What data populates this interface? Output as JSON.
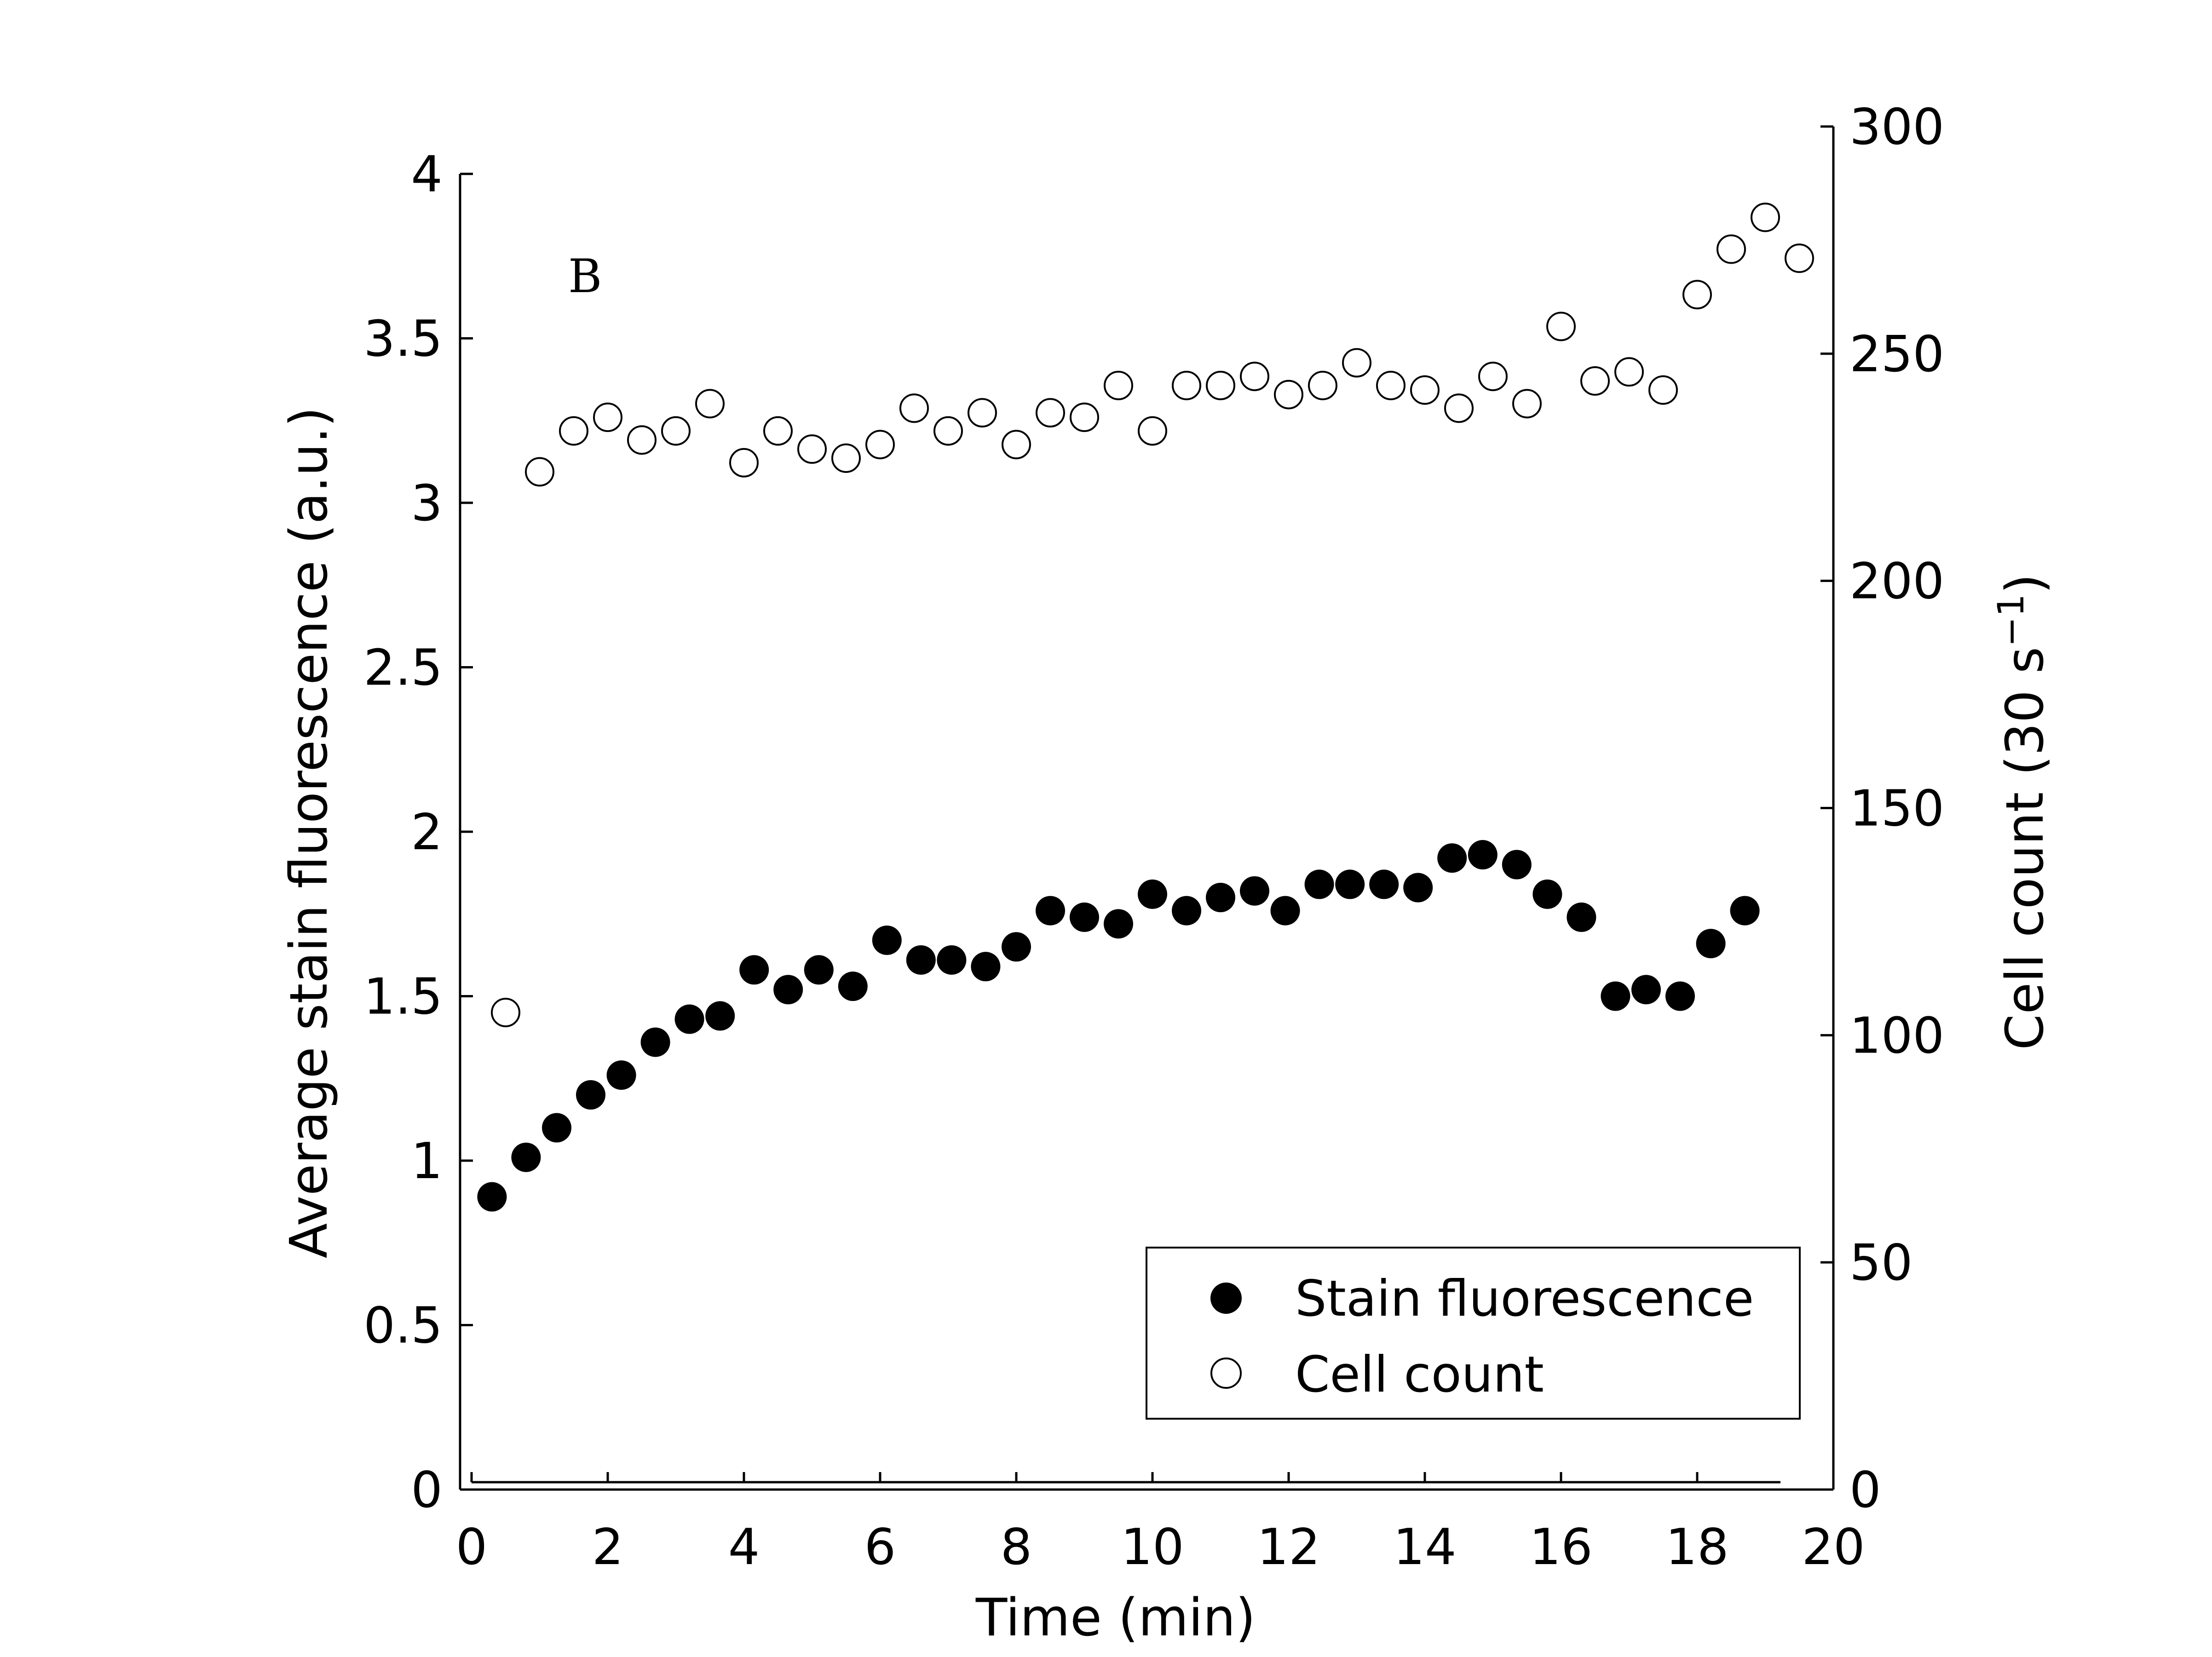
{
  "chart_data": {
    "type": "scatter",
    "panel_label": "B",
    "xlabel": "Time (min)",
    "ylabel_left": "Average stain fluorescence (a.u.)",
    "ylabel_right_main": "Cell count (30 s",
    "ylabel_right_sup": "−1",
    "ylabel_right_end": ")",
    "xlim": [
      0,
      20
    ],
    "ylim_left": [
      0,
      4
    ],
    "ylim_right": [
      0,
      300
    ],
    "x_ticks": [
      "0",
      "2",
      "4",
      "6",
      "8",
      "10",
      "12",
      "14",
      "16",
      "18",
      "20"
    ],
    "y_left_ticks": [
      "0",
      "0.5",
      "1",
      "1.5",
      "2",
      "2.5",
      "3",
      "3.5",
      "4"
    ],
    "y_right_ticks": [
      "0",
      "50",
      "100",
      "150",
      "200",
      "250",
      "300"
    ],
    "grid": false,
    "legend_position": "bottom-right",
    "series": [
      {
        "name": "Stain fluorescence",
        "axis": "left",
        "marker": "filled-circle",
        "x": [
          0.3,
          0.8,
          1.25,
          1.75,
          2.2,
          2.7,
          3.2,
          3.65,
          4.15,
          4.65,
          5.1,
          5.6,
          6.1,
          6.6,
          7.05,
          7.55,
          8.0,
          8.5,
          9.0,
          9.5,
          10.0,
          10.5,
          11.0,
          11.5,
          11.95,
          12.45,
          12.9,
          13.4,
          13.9,
          14.4,
          14.85,
          15.35,
          15.8,
          16.3,
          16.8,
          17.25,
          17.75,
          18.2,
          18.7
        ],
        "y": [
          0.89,
          1.01,
          1.1,
          1.2,
          1.26,
          1.36,
          1.43,
          1.44,
          1.58,
          1.52,
          1.58,
          1.53,
          1.67,
          1.61,
          1.61,
          1.59,
          1.65,
          1.76,
          1.74,
          1.72,
          1.81,
          1.76,
          1.8,
          1.82,
          1.76,
          1.84,
          1.84,
          1.84,
          1.83,
          1.92,
          1.93,
          1.9,
          1.81,
          1.74,
          1.5,
          1.52,
          1.5,
          1.66,
          1.76
        ]
      },
      {
        "name": "Cell count",
        "axis": "right",
        "marker": "open-circle",
        "x": [
          0.5,
          1.0,
          1.5,
          2.0,
          2.5,
          3.0,
          3.5,
          4.0,
          4.5,
          5.0,
          5.5,
          6.0,
          6.5,
          7.0,
          7.5,
          8.0,
          8.5,
          9.0,
          9.5,
          10.0,
          10.5,
          11.0,
          11.5,
          12.0,
          12.5,
          13.0,
          13.5,
          14.0,
          14.5,
          15.0,
          15.5,
          16.0,
          16.5,
          17.0,
          17.5,
          18.0,
          18.5,
          19.0,
          19.5
        ],
        "y": [
          105,
          224,
          233,
          236,
          231,
          233,
          239,
          226,
          233,
          229,
          227,
          230,
          238,
          233,
          237,
          230,
          237,
          236,
          243,
          233,
          243,
          243,
          245,
          241,
          243,
          248,
          243,
          242,
          238,
          245,
          239,
          256,
          244,
          246,
          242,
          263,
          273,
          280,
          271
        ]
      }
    ]
  }
}
